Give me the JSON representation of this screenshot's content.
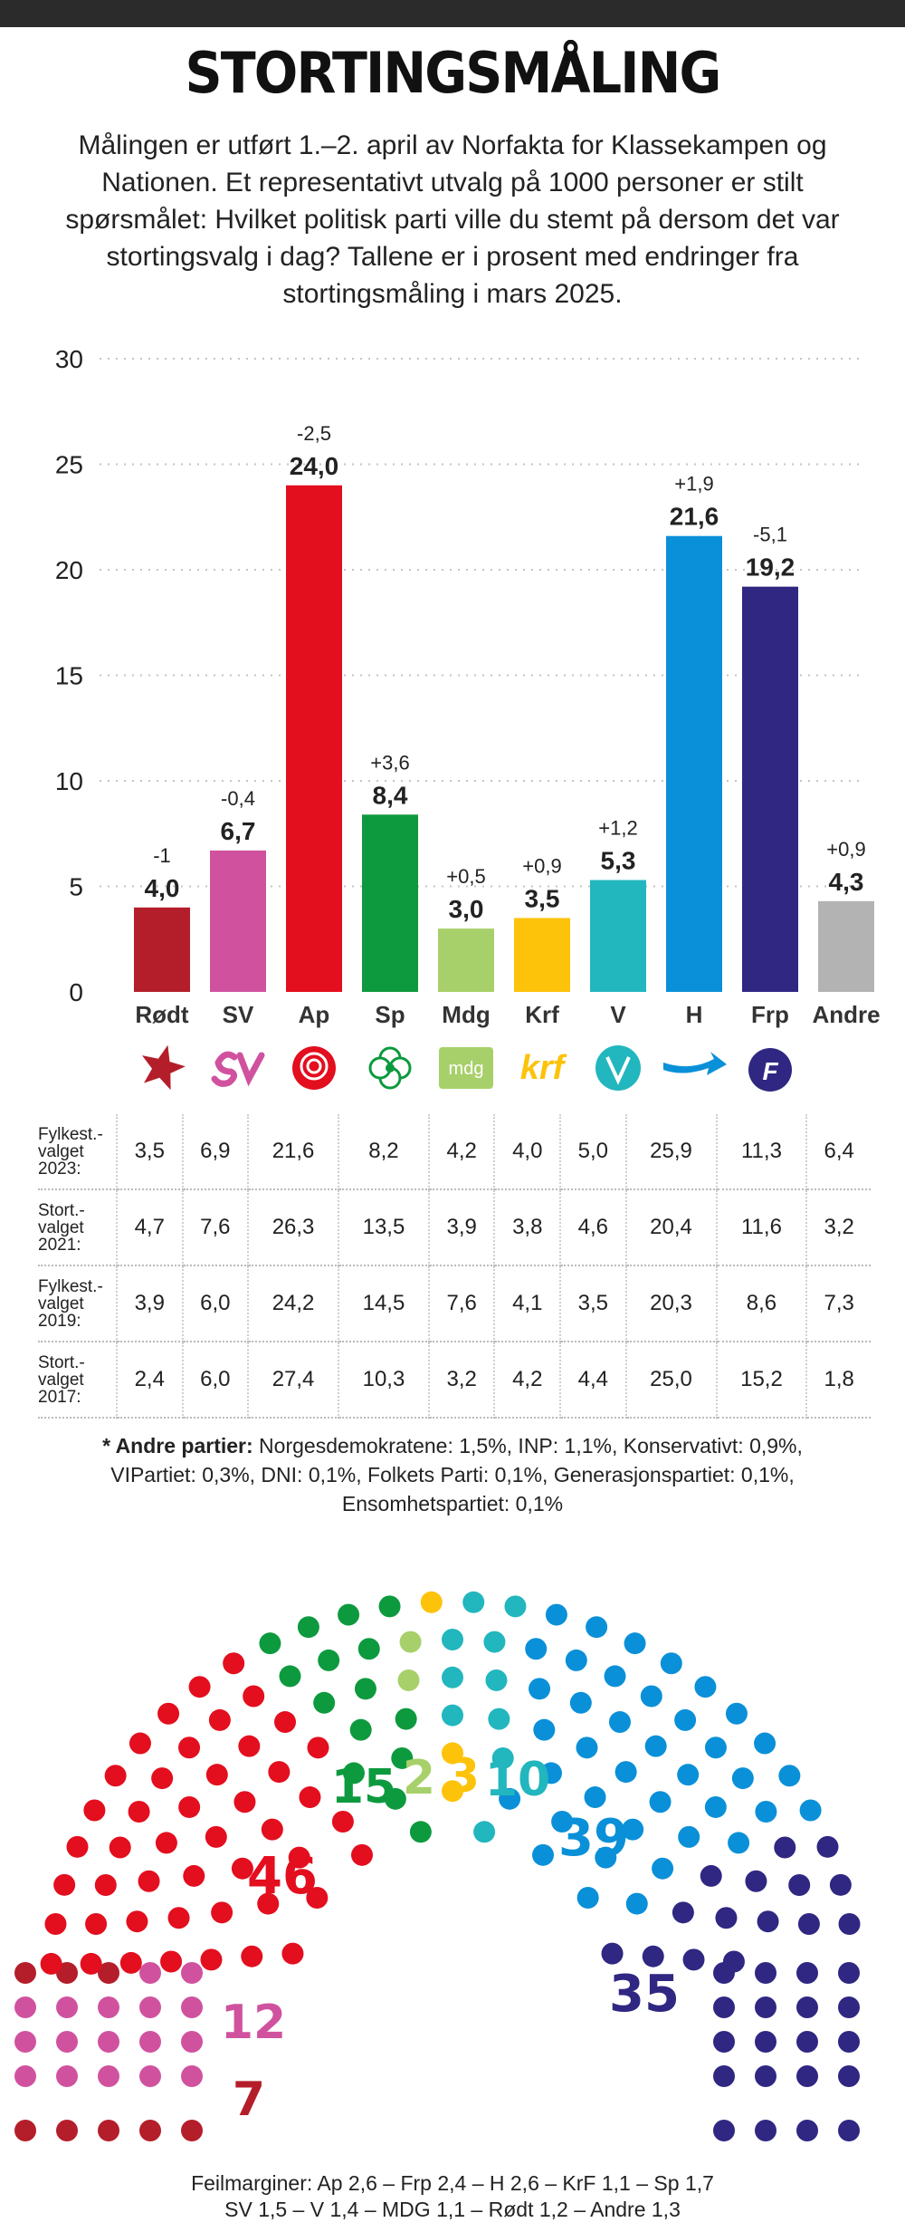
{
  "header": {
    "title": "STORTINGSMÅLING",
    "intro": "Målingen er utført 1.–2. april av Norfakta for Klassekampen og Nationen. Et representativt utvalg på 1000 personer er stilt spørsmålet: Hvilket politisk parti ville du stemt på dersom det var stortingsvalg i dag? Tallene er i prosent med endringer fra stortingsmåling i mars 2025."
  },
  "chart_data": {
    "type": "bar",
    "title": "STORTINGSMÅLING",
    "categories": [
      "Rødt",
      "SV",
      "Ap",
      "Sp",
      "Mdg",
      "Krf",
      "V",
      "H",
      "Frp",
      "Andre"
    ],
    "values": [
      4.0,
      6.7,
      24.0,
      8.4,
      3.0,
      3.5,
      5.3,
      21.6,
      19.2,
      4.3
    ],
    "value_labels": [
      "4,0",
      "6,7",
      "24,0",
      "8,4",
      "3,0",
      "3,5",
      "5,3",
      "21,6",
      "19,2",
      "4,3"
    ],
    "changes": [
      "-1",
      "-0,4",
      "-2,5",
      "+3,6",
      "+0,5",
      "+0,9",
      "+1,2",
      "+1,9",
      "-5,1",
      "+0,9"
    ],
    "colors": [
      "#b41e2a",
      "#d0529f",
      "#e30e1e",
      "#0d9a3e",
      "#a8d06a",
      "#fdc20a",
      "#22b6be",
      "#0a90d8",
      "#2f2782",
      "#b3b3b3"
    ],
    "yticks": [
      "0",
      "5",
      "10",
      "15",
      "20",
      "25",
      "30"
    ],
    "ylim": [
      0,
      30
    ],
    "grid": true,
    "xlabel": "",
    "ylabel": ""
  },
  "logos": [
    "rodt-star",
    "sv-logo",
    "ap-rose",
    "sp-clover",
    "mdg",
    "krf",
    "v-logo",
    "h-arrow",
    "frp-logo",
    "none"
  ],
  "logo_text": {
    "mdg": "mdg",
    "krf": "krf",
    "frp": "F"
  },
  "history": {
    "rows": [
      {
        "label": [
          "Fylkest.-",
          "valget",
          "2023:"
        ],
        "values": [
          "3,5",
          "6,9",
          "21,6",
          "8,2",
          "4,2",
          "4,0",
          "5,0",
          "25,9",
          "11,3",
          "6,4"
        ]
      },
      {
        "label": [
          "Stort.-",
          "valget",
          "2021:"
        ],
        "values": [
          "4,7",
          "7,6",
          "26,3",
          "13,5",
          "3,9",
          "3,8",
          "4,6",
          "20,4",
          "11,6",
          "3,2"
        ]
      },
      {
        "label": [
          "Fylkest.-",
          "valget",
          "2019:"
        ],
        "values": [
          "3,9",
          "6,0",
          "24,2",
          "14,5",
          "7,6",
          "4,1",
          "3,5",
          "20,3",
          "8,6",
          "7,3"
        ]
      },
      {
        "label": [
          "Stort.-",
          "valget",
          "2017:"
        ],
        "values": [
          "2,4",
          "6,0",
          "27,4",
          "10,3",
          "3,2",
          "4,2",
          "4,4",
          "25,0",
          "15,2",
          "1,8"
        ]
      }
    ]
  },
  "note": {
    "lead": "* Andre partier:",
    "text": " Norgesdemokratene: 1,5%, INP: 1,1%, Konservativt: 0,9%, VIPartiet: 0,3%, DNI: 0,1%,  Folkets Parti: 0,1%, Generasjonspartiet: 0,1%, Ensomhetspartiet: 0,1%"
  },
  "seats": [
    {
      "party": "Rødt",
      "seats": 7,
      "label": "7",
      "color": "#b41e2a"
    },
    {
      "party": "SV",
      "seats": 12,
      "label": "12",
      "color": "#d0529f"
    },
    {
      "party": "Ap",
      "seats": 46,
      "label": "46",
      "color": "#e30e1e"
    },
    {
      "party": "Sp",
      "seats": 15,
      "label": "15",
      "color": "#0d9a3e"
    },
    {
      "party": "Mdg",
      "seats": 2,
      "label": "2",
      "color": "#a8d06a"
    },
    {
      "party": "Krf",
      "seats": 3,
      "label": "3",
      "color": "#fdc20a"
    },
    {
      "party": "V",
      "seats": 10,
      "label": "10",
      "color": "#22b6be"
    },
    {
      "party": "H",
      "seats": 39,
      "label": "39",
      "color": "#0a90d8"
    },
    {
      "party": "Frp",
      "seats": 35,
      "label": "35",
      "color": "#2f2782"
    }
  ],
  "footer": {
    "line1": "Feilmarginer: Ap 2,6 – Frp 2,4 – H 2,6 – KrF 1,1 – Sp 1,7",
    "line2": "SV 1,5 – V 1,4 – MDG 1,1 – Rødt 1,2 – Andre 1,3"
  }
}
